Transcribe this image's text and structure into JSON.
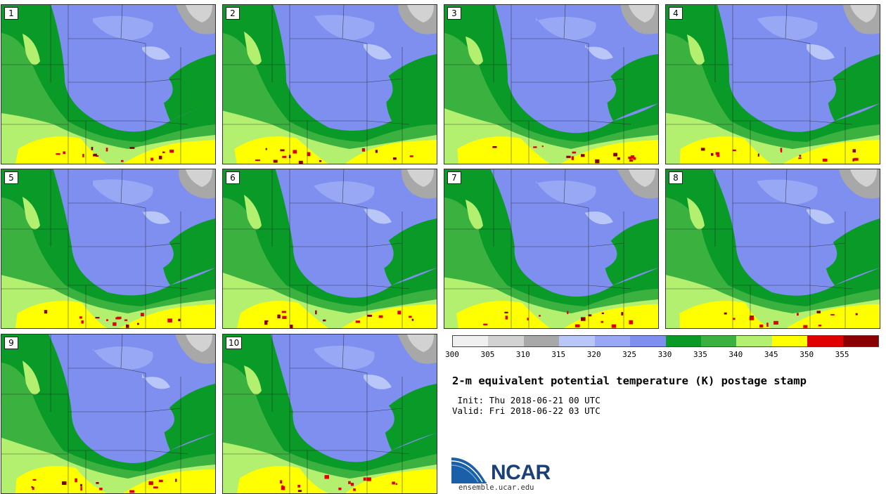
{
  "panels": [
    {
      "label": "1"
    },
    {
      "label": "2"
    },
    {
      "label": "3"
    },
    {
      "label": "4"
    },
    {
      "label": "5"
    },
    {
      "label": "6"
    },
    {
      "label": "7"
    },
    {
      "label": "8"
    },
    {
      "label": "9"
    },
    {
      "label": "10"
    }
  ],
  "colorbar": {
    "colors": [
      "#f0f0f0",
      "#d2d2d2",
      "#a8a8a8",
      "#b8c6f8",
      "#98a8f4",
      "#7f8ff0",
      "#0a9a28",
      "#3bb240",
      "#b4f070",
      "#ffff00",
      "#e00000",
      "#8a0000"
    ],
    "ticks": [
      "300",
      "305",
      "310",
      "315",
      "320",
      "325",
      "330",
      "335",
      "340",
      "345",
      "350",
      "355"
    ]
  },
  "title": "2-m equivalent potential temperature (K) postage stamp",
  "init": " Init: Thu 2018-06-21 00 UTC",
  "valid": "Valid: Fri 2018-06-22 03 UTC",
  "logo": {
    "name": "NCAR",
    "url": "ensemble.ucar.edu"
  }
}
